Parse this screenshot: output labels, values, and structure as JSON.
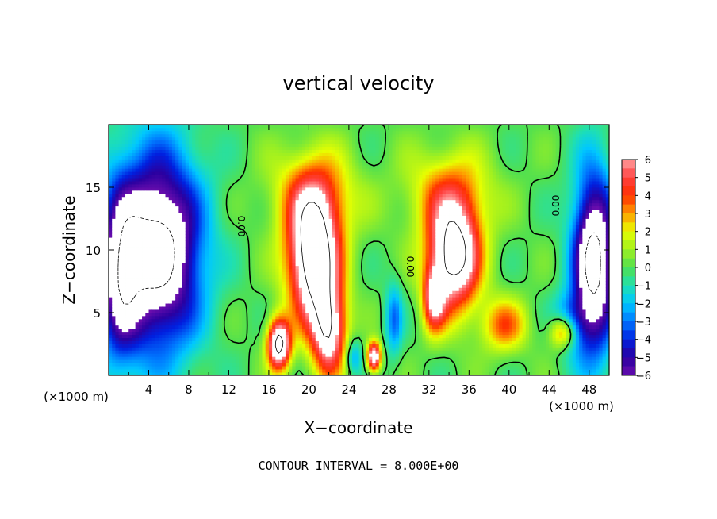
{
  "chart_data": {
    "type": "heatmap",
    "title": "vertical velocity",
    "xlabel": "X−coordinate",
    "ylabel": "Z−coordinate",
    "x_unit": "(×1000 m)",
    "z_unit": "(×1000 m)",
    "footer": "CONTOUR INTERVAL = 8.000E+00",
    "xlim": [
      0,
      50
    ],
    "ylim": [
      0,
      20
    ],
    "x_ticks": [
      "4",
      "8",
      "12",
      "16",
      "20",
      "24",
      "28",
      "32",
      "36",
      "40",
      "44",
      "48"
    ],
    "y_ticks": [
      "5",
      "10",
      "15"
    ],
    "colorbar": {
      "ticks": [
        "6",
        "5",
        "4",
        "3",
        "2",
        "1",
        "0",
        "−1",
        "−2",
        "−3",
        "−4",
        "−5",
        "−6"
      ],
      "min": -6,
      "max": 6,
      "levels": 24
    },
    "contour_labels": [
      "0.00",
      "0.00",
      "0.00"
    ],
    "grid": false,
    "legend": "colorbar-right",
    "color_scale": {
      "anchors": [
        [
          -6,
          "#6a0dad"
        ],
        [
          -5,
          "#2a00a0"
        ],
        [
          -4,
          "#0020e0"
        ],
        [
          -3,
          "#0078ff"
        ],
        [
          -2,
          "#00c8ff"
        ],
        [
          -1,
          "#20e0b0"
        ],
        [
          0,
          "#50e050"
        ],
        [
          1,
          "#a0f020"
        ],
        [
          2,
          "#e8ff00"
        ],
        [
          3,
          "#ff9a00"
        ],
        [
          4,
          "#ff3000"
        ],
        [
          5,
          "#ff4040"
        ],
        [
          6,
          "#ffa0a0"
        ]
      ],
      "above_max": "#ffffff",
      "below_min": "#ffffff"
    },
    "features": [
      {
        "kind": "updraft",
        "x": 20.5,
        "z": 9.5,
        "amp": 10,
        "sx": 1.8,
        "sz": 3.6
      },
      {
        "kind": "updraft",
        "x": 22.0,
        "z": 3.5,
        "amp": 7,
        "sx": 1.2,
        "sz": 2.5
      },
      {
        "kind": "updraft",
        "x": 20.5,
        "z": 14.5,
        "amp": 3,
        "sx": 3.0,
        "sz": 2.5
      },
      {
        "kind": "updraft",
        "x": 17.0,
        "z": 2.5,
        "amp": 9,
        "sx": 0.8,
        "sz": 1.4
      },
      {
        "kind": "updraft",
        "x": 26.5,
        "z": 1.5,
        "amp": 8,
        "sx": 0.5,
        "sz": 0.8
      },
      {
        "kind": "updraft",
        "x": 34.5,
        "z": 9.5,
        "amp": 9,
        "sx": 1.8,
        "sz": 3.0
      },
      {
        "kind": "updraft",
        "x": 34.0,
        "z": 14.5,
        "amp": 3,
        "sx": 3.0,
        "sz": 2.5
      },
      {
        "kind": "updraft",
        "x": 39.5,
        "z": 4.0,
        "amp": 3.5,
        "sx": 1.6,
        "sz": 1.5
      },
      {
        "kind": "updraft",
        "x": 45.5,
        "z": 3.5,
        "amp": 6,
        "sx": 1.0,
        "sz": 1.0
      },
      {
        "kind": "updraft",
        "x": 32.5,
        "z": 6.0,
        "amp": 5,
        "sx": 0.8,
        "sz": 1.8
      },
      {
        "kind": "downdraft",
        "x": 5.0,
        "z": 10.0,
        "amp": -9,
        "sx": 3.0,
        "sz": 5.5
      },
      {
        "kind": "downdraft",
        "x": 1.0,
        "z": 8.0,
        "amp": -5,
        "sx": 1.5,
        "sz": 5.0
      },
      {
        "kind": "downdraft",
        "x": 48.5,
        "z": 9.0,
        "amp": -9,
        "sx": 1.5,
        "sz": 5.0
      },
      {
        "kind": "downdraft",
        "x": 46.0,
        "z": 4.0,
        "amp": -4,
        "sx": 1.2,
        "sz": 1.5
      },
      {
        "kind": "downdraft",
        "x": 28.5,
        "z": 4.5,
        "amp": -3,
        "sx": 0.6,
        "sz": 2.0
      },
      {
        "kind": "downdraft",
        "x": 24.5,
        "z": 1.5,
        "amp": -2.5,
        "sx": 0.6,
        "sz": 1.0
      }
    ]
  }
}
